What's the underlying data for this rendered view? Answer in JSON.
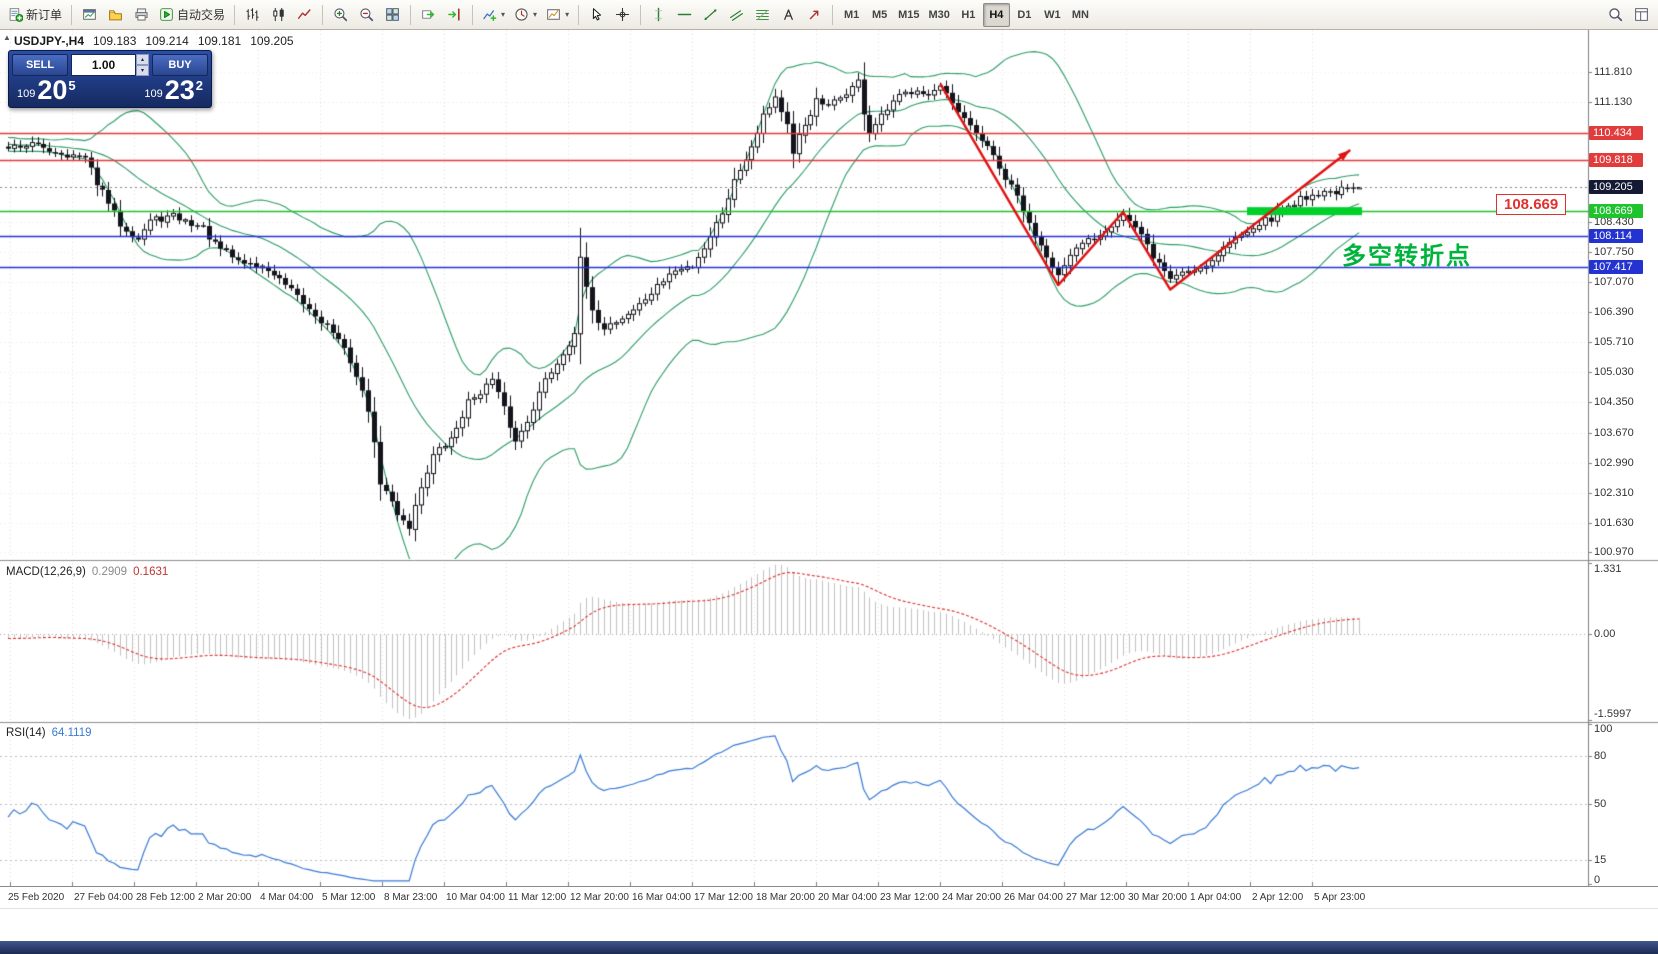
{
  "toolbar": {
    "dropdown_glyph": "▾",
    "timeframes": [
      "M1",
      "M5",
      "M15",
      "M30",
      "H1",
      "H4",
      "D1",
      "W1",
      "MN"
    ],
    "active_timeframe": "H4",
    "groups": [
      {
        "type": "button-labeled",
        "name": "new-order-button",
        "icon": "new-order-icon",
        "label": "新订单"
      },
      {
        "type": "sep"
      },
      {
        "type": "icons",
        "items": [
          "new-chart-icon",
          "profiles-icon",
          "print-icon"
        ]
      },
      {
        "type": "button-labeled",
        "name": "auto-trading-button",
        "icon": "auto-trading-icon",
        "label": "自动交易"
      },
      {
        "type": "sep"
      },
      {
        "type": "icons",
        "items": [
          "bar-chart-icon",
          "candlestick-chart-icon",
          "line-chart-icon"
        ]
      },
      {
        "type": "sep"
      },
      {
        "type": "icons",
        "items": [
          "zoom-in-icon",
          "zoom-out-icon",
          "tile-windows-icon"
        ]
      },
      {
        "type": "sep"
      },
      {
        "type": "icons",
        "items": [
          "auto-scroll-icon",
          "chart-shift-icon"
        ]
      },
      {
        "type": "sep"
      },
      {
        "type": "combos",
        "items": [
          "indicators-icon",
          "periods-icon",
          "templates-icon"
        ]
      },
      {
        "type": "sep"
      },
      {
        "type": "icons",
        "items": [
          "cursor-icon",
          "crosshair-icon"
        ]
      },
      {
        "type": "sep"
      },
      {
        "type": "icons",
        "items": [
          "vertical-line-icon",
          "horizontal-line-icon",
          "trendline-icon",
          "channel-icon",
          "fibonacci-icon",
          "text-icon",
          "arrow-tool-icon"
        ]
      },
      {
        "type": "sep"
      },
      {
        "type": "timeframes"
      },
      {
        "type": "spacer"
      },
      {
        "type": "icons",
        "items": [
          "search-icon",
          "layout-icon"
        ]
      }
    ]
  },
  "chart": {
    "collapse_glyph": "▲",
    "symbol_title": "USDJPY-,H4",
    "ohlc": {
      "open": "109.183",
      "high": "109.214",
      "low": "109.181",
      "close": "109.205"
    },
    "trade_panel": {
      "sell_label": "SELL",
      "buy_label": "BUY",
      "volume": "1.00",
      "spin_up_glyph": "▴",
      "spin_dn_glyph": "▾",
      "sell_price": {
        "prefix": "109",
        "big": "20",
        "sup": "5"
      },
      "buy_price": {
        "prefix": "109",
        "big": "23",
        "sup": "2"
      }
    },
    "annotation": "多空转折点",
    "callout_label": "108.669",
    "price_axis": {
      "regular": [
        "111.810",
        "111.130",
        "108.430",
        "107.750",
        "107.070",
        "106.390",
        "105.710",
        "105.030",
        "104.350",
        "103.670",
        "102.990",
        "102.310",
        "101.630",
        "100.970"
      ],
      "lines": [
        {
          "value": "110.434",
          "price": 110.434,
          "color": "#e23b3b",
          "type": "solid"
        },
        {
          "value": "109.818",
          "price": 109.818,
          "color": "#e23b3b",
          "type": "solid"
        },
        {
          "value": "109.205",
          "price": 109.205,
          "color": "#141a33",
          "type": "current"
        },
        {
          "value": "108.669",
          "price": 108.669,
          "color": "#1fc32e",
          "type": "solid"
        },
        {
          "value": "108.114",
          "price": 108.114,
          "color": "#2433cf",
          "type": "solid"
        },
        {
          "value": "107.417",
          "price": 107.417,
          "color": "#2433cf",
          "type": "solid"
        }
      ]
    }
  },
  "macd": {
    "title": "MACD(12,26,9)",
    "value_main": "0.2909",
    "value_signal": "0.1631",
    "axis": [
      "1.331",
      "0.00",
      "-1.5997"
    ]
  },
  "rsi": {
    "title": "RSI(14)",
    "value": "64.1119",
    "axis": [
      {
        "label": "100",
        "level": 100
      },
      {
        "label": "80",
        "level": 80
      },
      {
        "label": "50",
        "level": 50
      },
      {
        "label": "15",
        "level": 15
      },
      {
        "label": "0",
        "level": 0
      }
    ]
  },
  "time_axis": [
    "25 Feb 2020",
    "27 Feb 04:00",
    "28 Feb 12:00",
    "2 Mar 20:00",
    "4 Mar 04:00",
    "5 Mar 12:00",
    "8 Mar 23:00",
    "10 Mar 04:00",
    "11 Mar 12:00",
    "12 Mar 20:00",
    "16 Mar 04:00",
    "17 Mar 12:00",
    "18 Mar 20:00",
    "20 Mar 04:00",
    "23 Mar 12:00",
    "24 Mar 20:00",
    "26 Mar 04:00",
    "27 Mar 12:00",
    "30 Mar 20:00",
    "1 Apr 04:00",
    "2 Apr 12:00",
    "5 Apr 23:00"
  ],
  "chart_data": {
    "type": "candlestick",
    "symbol": "USDJPY",
    "timeframe": "H4",
    "bars": 230,
    "price_range": [
      100.86,
      112.76
    ],
    "colors": {
      "bull": "#ffffff",
      "bear": "#14141c",
      "wick": "#14141c",
      "bollinger": "#2f9e68",
      "macd_hist": "#c2c2c2",
      "macd_signal": "#dd3333",
      "rsi": "#3a7bd5",
      "trend": "#e01212",
      "highlight": "#00d02a"
    },
    "overlays": {
      "bollinger_period": 20,
      "bollinger_dev": 2
    },
    "levels": {
      "resistance": [
        110.434,
        109.818
      ],
      "pivot": 108.669,
      "support": [
        108.114,
        107.417
      ],
      "current": 109.205
    },
    "price_anchors": [
      [
        0,
        110.12
      ],
      [
        4,
        110.18
      ],
      [
        9,
        109.98
      ],
      [
        13,
        109.85
      ],
      [
        15,
        109.32
      ],
      [
        19,
        108.38
      ],
      [
        22,
        108.05
      ],
      [
        24,
        108.45
      ],
      [
        28,
        108.55
      ],
      [
        33,
        108.28
      ],
      [
        35,
        107.9
      ],
      [
        39,
        107.55
      ],
      [
        44,
        107.35
      ],
      [
        48,
        106.85
      ],
      [
        51,
        106.45
      ],
      [
        55,
        105.95
      ],
      [
        58,
        105.3
      ],
      [
        61,
        104.2
      ],
      [
        63,
        102.55
      ],
      [
        66,
        101.85
      ],
      [
        68,
        101.55
      ],
      [
        70,
        102.45
      ],
      [
        72,
        103.15
      ],
      [
        75,
        103.5
      ],
      [
        78,
        104.35
      ],
      [
        82,
        104.85
      ],
      [
        84,
        104.2
      ],
      [
        86,
        103.45
      ],
      [
        88,
        103.95
      ],
      [
        91,
        104.85
      ],
      [
        94,
        105.45
      ],
      [
        96,
        105.95
      ],
      [
        97,
        107.55
      ],
      [
        99,
        106.35
      ],
      [
        101,
        106.05
      ],
      [
        104,
        106.25
      ],
      [
        107,
        106.55
      ],
      [
        110,
        106.95
      ],
      [
        112,
        107.25
      ],
      [
        116,
        107.45
      ],
      [
        118,
        107.85
      ],
      [
        121,
        108.65
      ],
      [
        123,
        109.35
      ],
      [
        126,
        110.15
      ],
      [
        128,
        110.85
      ],
      [
        130,
        111.25
      ],
      [
        132,
        110.6
      ],
      [
        133,
        109.9
      ],
      [
        134,
        110.35
      ],
      [
        137,
        111.15
      ],
      [
        139,
        111.0
      ],
      [
        142,
        111.35
      ],
      [
        144,
        111.58
      ],
      [
        145,
        110.9
      ],
      [
        146,
        110.45
      ],
      [
        149,
        110.95
      ],
      [
        151,
        111.25
      ],
      [
        154,
        111.45
      ],
      [
        156,
        111.28
      ],
      [
        158,
        111.45
      ],
      [
        160,
        111.05
      ],
      [
        163,
        110.55
      ],
      [
        166,
        110.15
      ],
      [
        168,
        109.6
      ],
      [
        171,
        109.0
      ],
      [
        173,
        108.35
      ],
      [
        176,
        107.7
      ],
      [
        178,
        107.2
      ],
      [
        180,
        107.6
      ],
      [
        182,
        107.95
      ],
      [
        185,
        108.15
      ],
      [
        188,
        108.5
      ],
      [
        189,
        108.6
      ],
      [
        192,
        108.1
      ],
      [
        194,
        107.65
      ],
      [
        197,
        107.15
      ],
      [
        199,
        107.3
      ],
      [
        201,
        107.35
      ],
      [
        204,
        107.55
      ],
      [
        206,
        107.85
      ],
      [
        209,
        108.15
      ],
      [
        211,
        108.35
      ],
      [
        214,
        108.5
      ],
      [
        216,
        108.7
      ],
      [
        219,
        108.95
      ],
      [
        221,
        109.05
      ],
      [
        224,
        109.1
      ],
      [
        227,
        109.15
      ],
      [
        229,
        109.205
      ]
    ],
    "indicators": [
      {
        "type": "macd",
        "params": [
          12,
          26,
          9
        ],
        "range": [
          -1.5997,
          1.331
        ],
        "last_main": 0.2909,
        "last_signal": 0.1631
      },
      {
        "type": "rsi",
        "params": [
          14
        ],
        "range": [
          0,
          100
        ],
        "last": 64.1119
      }
    ],
    "trend_path": [
      {
        "bar": 158,
        "price": 111.55
      },
      {
        "bar": 178,
        "price": 107.0
      },
      {
        "bar": 189,
        "price": 108.65
      },
      {
        "bar": 197,
        "price": 106.9
      },
      {
        "bar": 227.5,
        "price": 110.05
      }
    ],
    "highlight_zone": {
      "price": 108.669,
      "from_bar": 210,
      "to_bar": 229.5
    }
  }
}
